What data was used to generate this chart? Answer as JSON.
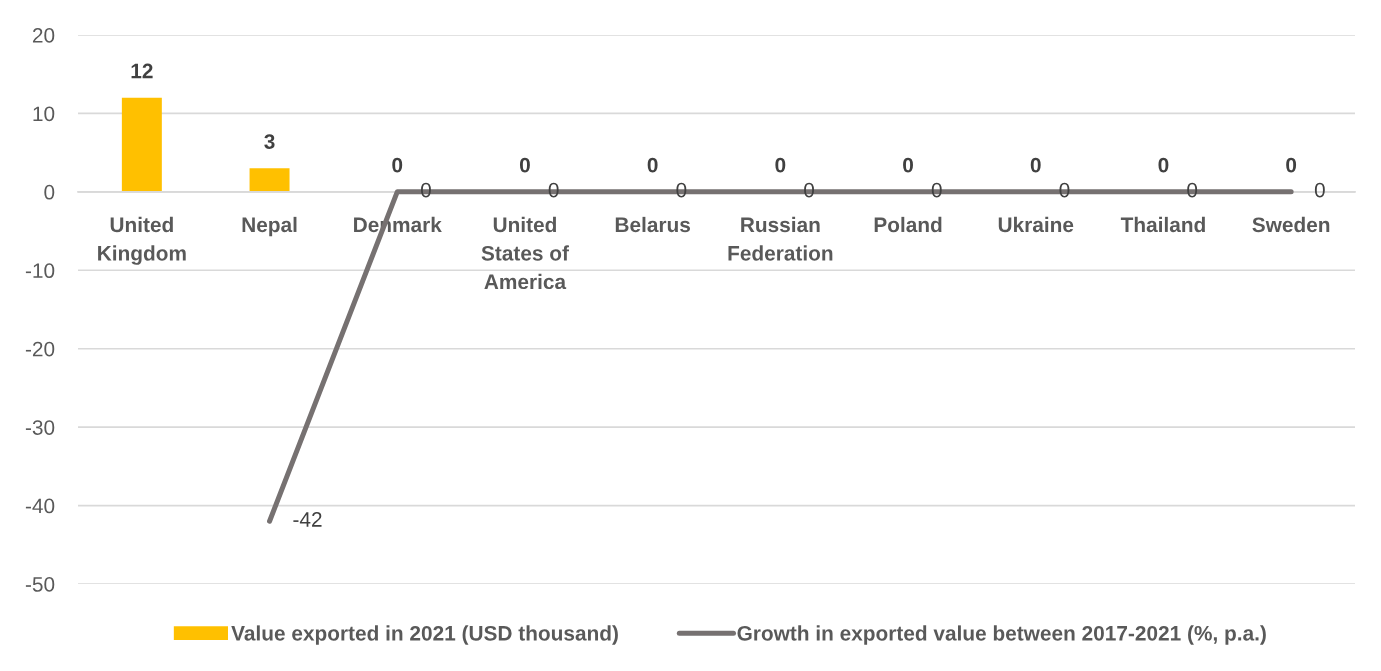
{
  "chart_data": {
    "type": "bar",
    "categories": [
      "United Kingdom",
      "Nepal",
      "Denmark",
      "United States of America",
      "Belarus",
      "Russian Federation",
      "Poland",
      "Ukraine",
      "Thailand",
      "Sweden"
    ],
    "series": [
      {
        "name": "Value exported in 2021 (USD thousand)",
        "color": "#ffc000",
        "values": [
          12,
          3,
          0,
          0,
          0,
          0,
          0,
          0,
          0,
          0
        ]
      },
      {
        "name": "Growth in exported value between 2017-2021 (%, p.a.)",
        "type": "line",
        "color": "#767171",
        "values": [
          null,
          -42,
          0,
          0,
          0,
          0,
          0,
          0,
          0,
          0
        ]
      }
    ],
    "ylim": [
      -50,
      20
    ],
    "yticks": [
      -50,
      -40,
      -30,
      -20,
      -10,
      0,
      10,
      20
    ],
    "grid": "y",
    "legend": "bottom",
    "data_labels": true
  }
}
